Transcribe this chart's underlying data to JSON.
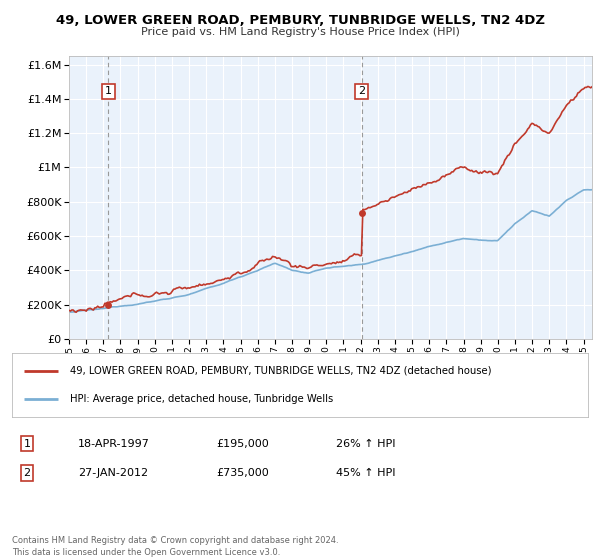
{
  "title": "49, LOWER GREEN ROAD, PEMBURY, TUNBRIDGE WELLS, TN2 4DZ",
  "subtitle": "Price paid vs. HM Land Registry's House Price Index (HPI)",
  "ylabel_ticks": [
    "£0",
    "£200K",
    "£400K",
    "£600K",
    "£800K",
    "£1M",
    "£1.2M",
    "£1.4M",
    "£1.6M"
  ],
  "ytick_values": [
    0,
    200000,
    400000,
    600000,
    800000,
    1000000,
    1200000,
    1400000,
    1600000
  ],
  "ylim": [
    0,
    1650000
  ],
  "xlim_start": 1995.0,
  "xlim_end": 2025.5,
  "purchase1_date": 1997.29,
  "purchase1_price": 195000,
  "purchase1_label": "1",
  "purchase2_date": 2012.07,
  "purchase2_price": 735000,
  "purchase2_label": "2",
  "legend_line1": "49, LOWER GREEN ROAD, PEMBURY, TUNBRIDGE WELLS, TN2 4DZ (detached house)",
  "legend_line2": "HPI: Average price, detached house, Tunbridge Wells",
  "footer": "Contains HM Land Registry data © Crown copyright and database right 2024.\nThis data is licensed under the Open Government Licence v3.0.",
  "hpi_color": "#7bafd4",
  "price_color": "#c0392b",
  "dashed_line_color": "#999999",
  "marker_color": "#c0392b",
  "plot_bg_color": "#eaf2fb",
  "grid_color": "#ffffff",
  "annotation_box_color": "#c0392b",
  "purchase1_date_str": "18-APR-1997",
  "purchase1_price_str": "£195,000",
  "purchase1_hpi_str": "26% ↑ HPI",
  "purchase2_date_str": "27-JAN-2012",
  "purchase2_price_str": "£735,000",
  "purchase2_hpi_str": "45% ↑ HPI"
}
